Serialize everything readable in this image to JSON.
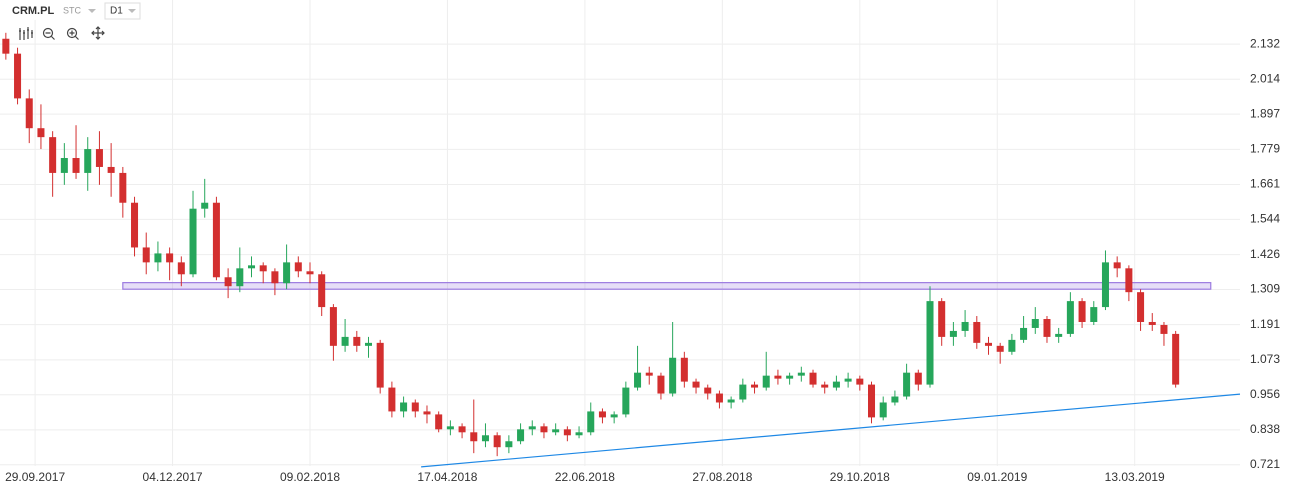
{
  "chart_data": {
    "type": "candlestick",
    "symbol": "CRM.PL",
    "source": "STC",
    "interval": "D1",
    "up_color": "#26a65b",
    "down_color": "#d32f2f",
    "grid": true,
    "xlim": [
      -0.5,
      105.5
    ],
    "ylim": [
      0.67,
      2.28
    ],
    "yticks": [
      2.132,
      2.014,
      1.897,
      1.779,
      1.661,
      1.544,
      1.426,
      1.309,
      1.191,
      1.073,
      0.956,
      0.838,
      0.721
    ],
    "xticks": [
      {
        "value": 2.5,
        "label": "29.09.2017"
      },
      {
        "value": 14.25,
        "label": "04.12.2017"
      },
      {
        "value": 26,
        "label": "09.02.2018"
      },
      {
        "value": 37.75,
        "label": "17.04.2018"
      },
      {
        "value": 49.5,
        "label": "22.06.2018"
      },
      {
        "value": 61.25,
        "label": "27.08.2018"
      },
      {
        "value": 73,
        "label": "29.10.2018"
      },
      {
        "value": 84.75,
        "label": "09.01.2019"
      },
      {
        "value": 96.5,
        "label": "13.03.2019"
      }
    ],
    "zone": {
      "x": [
        10,
        103
      ],
      "y": [
        1.31,
        1.332
      ],
      "color": "#9c7be0"
    },
    "trendline": {
      "x": [
        35.5,
        105.5
      ],
      "y": [
        0.714,
        0.958
      ],
      "color": "#1e88e5"
    },
    "ohlc": [
      [
        2.15,
        2.17,
        2.08,
        2.1
      ],
      [
        2.1,
        2.12,
        1.93,
        1.95
      ],
      [
        1.95,
        1.98,
        1.8,
        1.85
      ],
      [
        1.85,
        1.93,
        1.78,
        1.82
      ],
      [
        1.82,
        1.84,
        1.62,
        1.7
      ],
      [
        1.7,
        1.8,
        1.66,
        1.75
      ],
      [
        1.75,
        1.86,
        1.68,
        1.7
      ],
      [
        1.7,
        1.82,
        1.64,
        1.78
      ],
      [
        1.78,
        1.84,
        1.66,
        1.72
      ],
      [
        1.72,
        1.8,
        1.62,
        1.7
      ],
      [
        1.7,
        1.72,
        1.55,
        1.6
      ],
      [
        1.6,
        1.62,
        1.42,
        1.45
      ],
      [
        1.45,
        1.5,
        1.36,
        1.4
      ],
      [
        1.4,
        1.47,
        1.37,
        1.43
      ],
      [
        1.43,
        1.45,
        1.34,
        1.4
      ],
      [
        1.4,
        1.42,
        1.32,
        1.36
      ],
      [
        1.36,
        1.64,
        1.35,
        1.58
      ],
      [
        1.58,
        1.68,
        1.55,
        1.6
      ],
      [
        1.6,
        1.62,
        1.34,
        1.35
      ],
      [
        1.35,
        1.38,
        1.28,
        1.32
      ],
      [
        1.32,
        1.45,
        1.3,
        1.38
      ],
      [
        1.38,
        1.42,
        1.35,
        1.39
      ],
      [
        1.39,
        1.4,
        1.33,
        1.37
      ],
      [
        1.37,
        1.38,
        1.29,
        1.33
      ],
      [
        1.33,
        1.46,
        1.31,
        1.4
      ],
      [
        1.4,
        1.42,
        1.35,
        1.37
      ],
      [
        1.37,
        1.4,
        1.33,
        1.36
      ],
      [
        1.36,
        1.37,
        1.22,
        1.25
      ],
      [
        1.25,
        1.26,
        1.07,
        1.12
      ],
      [
        1.12,
        1.21,
        1.1,
        1.15
      ],
      [
        1.15,
        1.17,
        1.1,
        1.12
      ],
      [
        1.12,
        1.15,
        1.08,
        1.13
      ],
      [
        1.13,
        1.14,
        0.96,
        0.98
      ],
      [
        0.98,
        1.0,
        0.88,
        0.9
      ],
      [
        0.9,
        0.95,
        0.88,
        0.93
      ],
      [
        0.93,
        0.94,
        0.88,
        0.9
      ],
      [
        0.9,
        0.92,
        0.86,
        0.89
      ],
      [
        0.89,
        0.9,
        0.83,
        0.84
      ],
      [
        0.84,
        0.87,
        0.82,
        0.85
      ],
      [
        0.85,
        0.86,
        0.81,
        0.83
      ],
      [
        0.83,
        0.94,
        0.76,
        0.8
      ],
      [
        0.8,
        0.86,
        0.78,
        0.82
      ],
      [
        0.82,
        0.83,
        0.75,
        0.78
      ],
      [
        0.78,
        0.82,
        0.76,
        0.8
      ],
      [
        0.8,
        0.86,
        0.79,
        0.84
      ],
      [
        0.84,
        0.87,
        0.82,
        0.85
      ],
      [
        0.85,
        0.86,
        0.81,
        0.83
      ],
      [
        0.83,
        0.86,
        0.82,
        0.84
      ],
      [
        0.84,
        0.85,
        0.8,
        0.82
      ],
      [
        0.82,
        0.85,
        0.81,
        0.83
      ],
      [
        0.83,
        0.93,
        0.82,
        0.9
      ],
      [
        0.9,
        0.91,
        0.86,
        0.88
      ],
      [
        0.88,
        0.9,
        0.86,
        0.89
      ],
      [
        0.89,
        1.0,
        0.88,
        0.98
      ],
      [
        0.98,
        1.12,
        0.97,
        1.03
      ],
      [
        1.03,
        1.05,
        0.99,
        1.02
      ],
      [
        1.02,
        1.03,
        0.94,
        0.96
      ],
      [
        0.96,
        1.2,
        0.95,
        1.08
      ],
      [
        1.08,
        1.1,
        0.98,
        1.0
      ],
      [
        1.0,
        1.01,
        0.96,
        0.98
      ],
      [
        0.98,
        0.99,
        0.94,
        0.96
      ],
      [
        0.96,
        0.97,
        0.91,
        0.93
      ],
      [
        0.93,
        0.95,
        0.91,
        0.94
      ],
      [
        0.94,
        1.01,
        0.93,
        0.99
      ],
      [
        0.99,
        1.0,
        0.96,
        0.98
      ],
      [
        0.98,
        1.1,
        0.97,
        1.02
      ],
      [
        1.02,
        1.04,
        0.99,
        1.01
      ],
      [
        1.01,
        1.03,
        0.99,
        1.02
      ],
      [
        1.02,
        1.05,
        1.0,
        1.03
      ],
      [
        1.03,
        1.04,
        0.98,
        0.99
      ],
      [
        0.99,
        1.0,
        0.96,
        0.98
      ],
      [
        0.98,
        1.02,
        0.97,
        1.0
      ],
      [
        1.0,
        1.03,
        0.98,
        1.01
      ],
      [
        1.01,
        1.02,
        0.97,
        0.99
      ],
      [
        0.99,
        1.0,
        0.86,
        0.88
      ],
      [
        0.88,
        0.95,
        0.87,
        0.93
      ],
      [
        0.93,
        0.97,
        0.92,
        0.95
      ],
      [
        0.95,
        1.06,
        0.94,
        1.03
      ],
      [
        1.03,
        1.04,
        0.97,
        0.99
      ],
      [
        0.99,
        1.32,
        0.98,
        1.27
      ],
      [
        1.27,
        1.28,
        1.12,
        1.15
      ],
      [
        1.15,
        1.2,
        1.12,
        1.17
      ],
      [
        1.17,
        1.24,
        1.15,
        1.2
      ],
      [
        1.2,
        1.22,
        1.11,
        1.13
      ],
      [
        1.13,
        1.15,
        1.09,
        1.12
      ],
      [
        1.12,
        1.13,
        1.06,
        1.1
      ],
      [
        1.1,
        1.16,
        1.09,
        1.14
      ],
      [
        1.14,
        1.22,
        1.13,
        1.18
      ],
      [
        1.18,
        1.25,
        1.16,
        1.21
      ],
      [
        1.21,
        1.22,
        1.13,
        1.15
      ],
      [
        1.15,
        1.18,
        1.13,
        1.16
      ],
      [
        1.16,
        1.3,
        1.15,
        1.27
      ],
      [
        1.27,
        1.28,
        1.18,
        1.2
      ],
      [
        1.2,
        1.27,
        1.19,
        1.25
      ],
      [
        1.25,
        1.44,
        1.24,
        1.4
      ],
      [
        1.4,
        1.42,
        1.35,
        1.38
      ],
      [
        1.38,
        1.39,
        1.27,
        1.3
      ],
      [
        1.3,
        1.31,
        1.17,
        1.2
      ],
      [
        1.2,
        1.23,
        1.17,
        1.19
      ],
      [
        1.19,
        1.2,
        1.12,
        1.16
      ],
      [
        1.16,
        1.17,
        0.98,
        0.99
      ]
    ]
  }
}
